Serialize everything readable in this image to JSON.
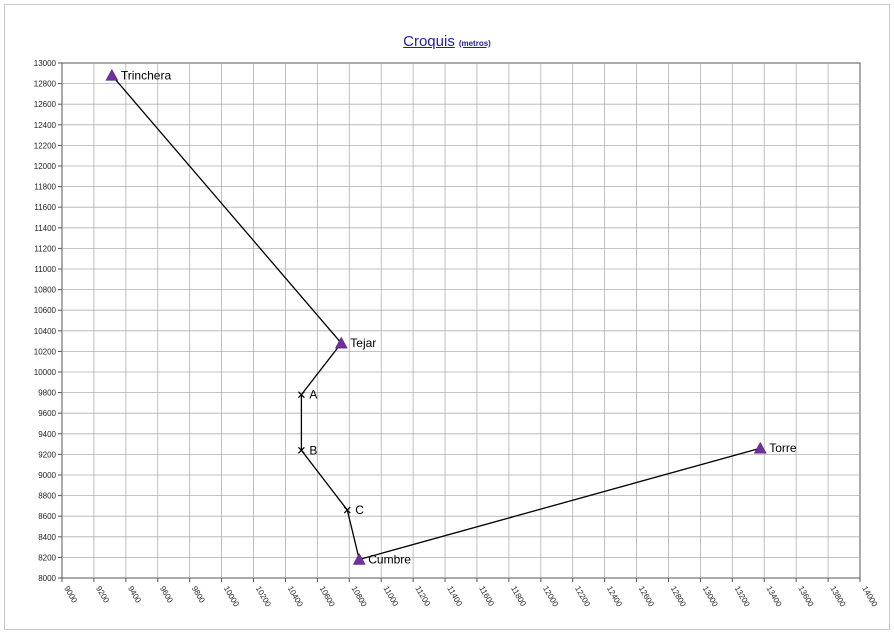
{
  "chart_data": {
    "type": "scatter",
    "title": "Croquis",
    "subtitle": "(metros)",
    "xlabel": "",
    "ylabel": "",
    "xlim": [
      9000,
      13000
    ],
    "ylim": [
      8000,
      13000
    ],
    "x_ticks": [
      "9000",
      "9200",
      "9400",
      "9600",
      "9800",
      "10000",
      "10200",
      "10400",
      "10600",
      "10800",
      "11000",
      "11200",
      "11400",
      "11600",
      "11800",
      "12000",
      "12200",
      "12400",
      "12600",
      "12800",
      "13000",
      "13200",
      "13400",
      "13600",
      "13800",
      "14000"
    ],
    "y_ticks": [
      "8000",
      "8200",
      "8400",
      "8600",
      "8800",
      "9000",
      "9200",
      "9400",
      "9600",
      "9800",
      "10000",
      "10200",
      "10400",
      "10600",
      "10800",
      "11000",
      "11200",
      "11400",
      "11600",
      "11800",
      "12000",
      "12200",
      "12400",
      "12600",
      "12800",
      "13000"
    ],
    "grid": true,
    "legend": "none",
    "series": [
      {
        "points": [
          {
            "label": "Trinchera",
            "x": 9250,
            "y": 12880,
            "marker": "triangle"
          },
          {
            "label": "Tejar",
            "x": 10400,
            "y": 10280,
            "marker": "triangle"
          },
          {
            "label": "A",
            "x": 10200,
            "y": 9780,
            "marker": "cross"
          },
          {
            "label": "B",
            "x": 10200,
            "y": 9240,
            "marker": "cross"
          },
          {
            "label": "C",
            "x": 10430,
            "y": 8660,
            "marker": "cross"
          },
          {
            "label": "Cumbre",
            "x": 10490,
            "y": 8180,
            "marker": "triangle"
          },
          {
            "label": "Torre",
            "x": 12500,
            "y": 9260,
            "marker": "triangle"
          }
        ]
      }
    ],
    "colors": {
      "line": "#000000",
      "triangle": "#7030a0",
      "grid": "#b0b0b0",
      "title": "#1f1fa0"
    }
  }
}
